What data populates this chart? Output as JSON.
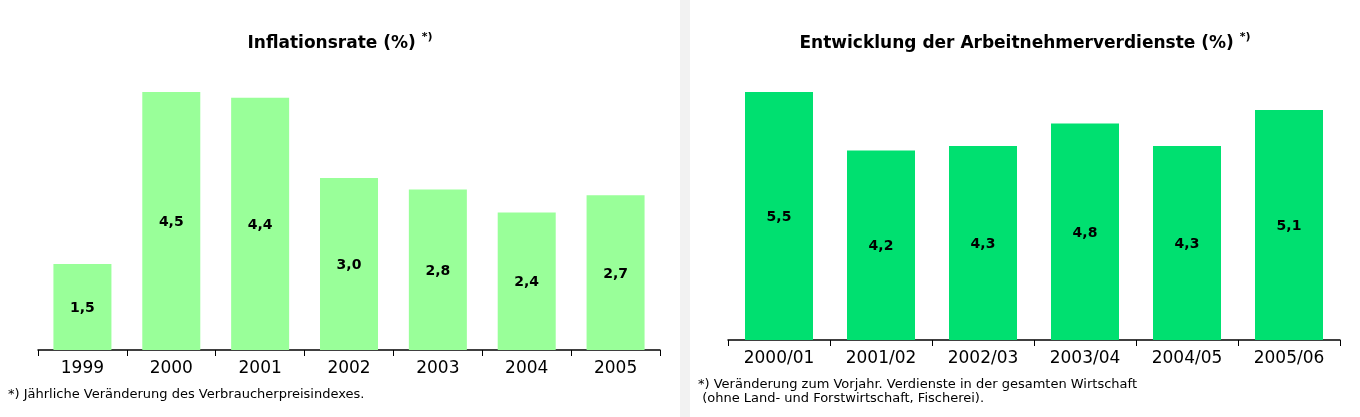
{
  "chart_data": [
    {
      "type": "bar",
      "title": "Inflationsrate (%) $^{*)}$",
      "categories": [
        "1999",
        "2000",
        "2001",
        "2002",
        "2003",
        "2004",
        "2005"
      ],
      "values": [
        1.5,
        4.5,
        4.4,
        3.0,
        2.8,
        2.4,
        2.7
      ],
      "value_labels": [
        "1,5",
        "4,5",
        "4,4",
        "3,0",
        "2,8",
        "2,4",
        "2,7"
      ],
      "color": "#99ff99",
      "annotations": [
        "*) Jährliche Veränderung des Verbraucherpreisindexes."
      ],
      "grid": false
    },
    {
      "type": "bar",
      "title": "Entwicklung der Arbeitnehmerverdienste (%) $^{*)}$",
      "categories": [
        "2000/01",
        "2001/02",
        "2002/03",
        "2003/04",
        "2004/05",
        "2005/06"
      ],
      "values": [
        5.5,
        4.2,
        4.3,
        4.8,
        4.3,
        5.1
      ],
      "value_labels": [
        "5,5",
        "4,2",
        "4,3",
        "4,8",
        "4,3",
        "5,1"
      ],
      "color": "#00e070",
      "annotations": [
        "*) Veränderung zum Vorjahr. Verdienste in der gesamten Wirtschaft\n (ohne Land- und Forstwirtschaft, Fischerei)."
      ],
      "grid": false
    }
  ]
}
